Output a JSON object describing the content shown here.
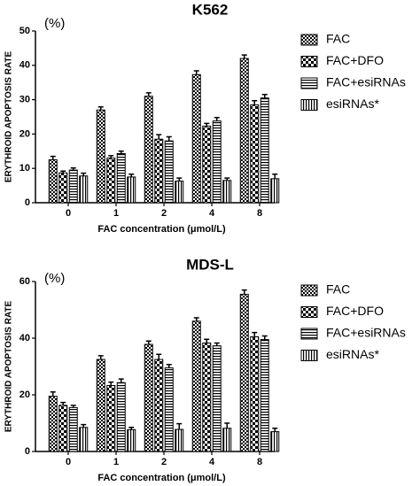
{
  "chart_data": [
    {
      "type": "bar",
      "title": "K562",
      "unit_label": "(%)",
      "ylabel": "ERYTHROID APOPTOSIS RATE",
      "xlabel": "FAC concentration (μmol/L)",
      "categories": [
        "0",
        "1",
        "2",
        "4",
        "8"
      ],
      "series": [
        {
          "name": "FAC",
          "color": "#000000",
          "pattern": "checker-fine",
          "values": [
            12.5,
            27,
            31,
            37.3,
            42
          ],
          "errors": [
            1.0,
            0.9,
            1.0,
            1.1,
            1.0
          ]
        },
        {
          "name": "FAC+DFO",
          "color": "#000000",
          "pattern": "checker-coarse",
          "values": [
            8.7,
            13,
            18.5,
            22.3,
            28.5
          ],
          "errors": [
            0.5,
            0.7,
            1.3,
            0.8,
            1.2
          ]
        },
        {
          "name": "FAC+esiRNAs",
          "color": "#000000",
          "pattern": "horizontal",
          "values": [
            9.5,
            14.3,
            18,
            23.8,
            30.5
          ],
          "errors": [
            0.6,
            0.7,
            1.2,
            1.0,
            1.0
          ]
        },
        {
          "name": "esiRNAs*",
          "color": "#000000",
          "pattern": "vertical",
          "values": [
            7.8,
            7.5,
            6.3,
            6.5,
            7
          ],
          "errors": [
            0.8,
            0.8,
            0.9,
            0.7,
            1.3
          ]
        }
      ],
      "ylim": [
        0,
        50
      ],
      "yticks": [
        0,
        10,
        20,
        30,
        40,
        50
      ],
      "legend": "right"
    },
    {
      "type": "bar",
      "title": "MDS-L",
      "unit_label": "(%)",
      "ylabel": "ERYTHROID APOPTOSIS RATE",
      "xlabel": "FAC concentration (μmol/L)",
      "categories": [
        "0",
        "1",
        "2",
        "4",
        "8"
      ],
      "series": [
        {
          "name": "FAC",
          "color": "#000000",
          "pattern": "checker-fine",
          "values": [
            19.5,
            32.5,
            37.8,
            46,
            55.5
          ],
          "errors": [
            1.5,
            1.3,
            1.2,
            1.2,
            1.5
          ]
        },
        {
          "name": "FAC+DFO",
          "color": "#000000",
          "pattern": "checker-coarse",
          "values": [
            16.3,
            23.3,
            32.5,
            38.3,
            40.5
          ],
          "errors": [
            1.0,
            1.2,
            1.8,
            1.3,
            1.5
          ]
        },
        {
          "name": "FAC+esiRNAs",
          "color": "#000000",
          "pattern": "horizontal",
          "values": [
            15.5,
            24.3,
            29.5,
            37.3,
            39.5
          ],
          "errors": [
            0.8,
            1.3,
            1.2,
            1.0,
            1.3
          ]
        },
        {
          "name": "esiRNAs*",
          "color": "#000000",
          "pattern": "vertical",
          "values": [
            8.5,
            7.7,
            7.8,
            8.2,
            7
          ],
          "errors": [
            1.0,
            0.8,
            2.0,
            1.8,
            1.2
          ]
        }
      ],
      "ylim": [
        0,
        60
      ],
      "yticks": [
        0,
        20,
        40,
        60
      ],
      "legend": "right"
    }
  ]
}
